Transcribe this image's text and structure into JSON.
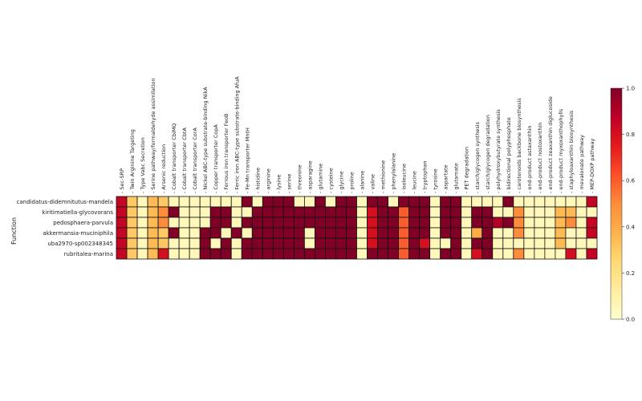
{
  "chart_data": {
    "type": "heatmap",
    "ylabel": "Function",
    "columns": [
      "Sec-SRP",
      "Twin Arginine Targeting",
      "Type Vabc Secretion",
      "Serine pathway/formaldehyde assimilation",
      "Arsenic reduction",
      "Cobalt transporter CbiMQ",
      "Cobalt transporter CbtA",
      "Cobalt transporter CorA",
      "Nickel ABC-type substrate-binding NikA",
      "Copper transporter CopA",
      "Ferrous iron transporter FeoB",
      "Ferric iron ABC-type substrate-binding AfuA",
      "Fe-Mn transporter MntH",
      "histidine",
      "arginine",
      "lysine",
      "serine",
      "threonine",
      "asparagine",
      "glutamine",
      "cysteine",
      "glycine",
      "proline",
      "alanine",
      "valine",
      "methionine",
      "phenylalanine",
      "isoleucine",
      "leucine",
      "tryptophan",
      "tyrosine",
      "aspartate",
      "glutamate",
      "PET degradation",
      "starch/glycogen synthesis",
      "starch/glycogen degradation",
      "polyhydroxybutyrate synthesis",
      "bidirectional polyphosphate",
      "carotenoids backbone biosynthesis",
      "end-product astaxanthin",
      "end-product nostoxanthin",
      "end-product zeaxanthin diglucoside",
      "end-product myxoxanthophylls",
      "staphyloaxanthin biosynthesis",
      "mevalonate pathway",
      "MEP-DOXP pathway"
    ],
    "rows": [
      "candidatus-didemnitutus-mandela",
      "kiritimatiella-glycovorans",
      "pedosphaera-parvula",
      "akkermansia-muciniphila",
      "uba2970-sp002348345",
      "rubritalea-marina"
    ],
    "values": [
      [
        0.85,
        0.3,
        0.05,
        0.35,
        0.3,
        0.05,
        0.05,
        0.05,
        0.05,
        0.05,
        0.05,
        0.05,
        1,
        0.05,
        1,
        1,
        1,
        0.05,
        0.05,
        1,
        0.05,
        1,
        1,
        0.05,
        1,
        1,
        0.05,
        1,
        1,
        1,
        0.05,
        1,
        1,
        0.05,
        0.05,
        0.05,
        0.05,
        1,
        0.05,
        0.05,
        0.05,
        0.05,
        0.05,
        0.05,
        0.05,
        0.85
      ],
      [
        0.85,
        0.3,
        0.05,
        0.35,
        0.5,
        1,
        0.05,
        0.05,
        0.05,
        1,
        1,
        0.05,
        0.05,
        1,
        1,
        1,
        1,
        1,
        1,
        1,
        1,
        1,
        1,
        0.05,
        0.8,
        1,
        1,
        0.6,
        1,
        1,
        0.05,
        1,
        1,
        0.05,
        1,
        1,
        0.05,
        0.05,
        0.5,
        0.05,
        0.05,
        0.05,
        0.35,
        0.35,
        0.05,
        0.05
      ],
      [
        0.85,
        0.3,
        0.05,
        0.35,
        0.5,
        0.05,
        0.05,
        0.05,
        0.05,
        1,
        1,
        0.05,
        1,
        1,
        1,
        1,
        1,
        1,
        1,
        1,
        1,
        1,
        1,
        0.05,
        0.8,
        1,
        1,
        0.6,
        1,
        1,
        0.05,
        1,
        1,
        0.05,
        1,
        1,
        0.9,
        1,
        0.5,
        0.05,
        0.05,
        0.05,
        0.35,
        0.5,
        0.05,
        0.85
      ],
      [
        0.85,
        0.3,
        0.05,
        0.35,
        0.3,
        1,
        0.05,
        0.05,
        1,
        1,
        0.05,
        1,
        0.05,
        1,
        1,
        1,
        1,
        1,
        0.05,
        1,
        1,
        1,
        1,
        0.05,
        0.8,
        1,
        1,
        0.6,
        1,
        1,
        0.05,
        1,
        1,
        0.05,
        0.4,
        1,
        0.05,
        0.05,
        0.5,
        0.05,
        0.05,
        0.05,
        0.35,
        0.05,
        0.05,
        0.85
      ],
      [
        0.85,
        0.3,
        0.05,
        0.35,
        0.3,
        0.05,
        0.05,
        0.05,
        1,
        0.05,
        1,
        0.05,
        1,
        1,
        1,
        1,
        1,
        1,
        0.05,
        1,
        1,
        1,
        1,
        0.05,
        0.8,
        1,
        1,
        0.6,
        1,
        0.8,
        0.05,
        0.05,
        1,
        0.05,
        1,
        1,
        0.05,
        0.05,
        0.05,
        0.05,
        0.05,
        0.05,
        0.35,
        0.05,
        0.05,
        0.05
      ],
      [
        0.85,
        0.3,
        0.05,
        0.35,
        0.8,
        0.05,
        0.05,
        0.05,
        1,
        1,
        1,
        0.05,
        1,
        1,
        1,
        1,
        1,
        1,
        1,
        1,
        1,
        1,
        1,
        0.05,
        1,
        1,
        1,
        0.6,
        1,
        1,
        0.05,
        1,
        1,
        0.05,
        0.8,
        1,
        0.05,
        0.05,
        0.5,
        0.05,
        0.05,
        0.05,
        0.05,
        0.8,
        0.05,
        0.85
      ]
    ],
    "colorbar": {
      "range": [
        0.0,
        1.0
      ],
      "ticks": [
        "0.0",
        "0.2",
        "0.4",
        "0.6",
        "0.8",
        "1.0"
      ],
      "colormap": [
        "#ffffcc",
        "#ffeda0",
        "#fed976",
        "#feb24c",
        "#fd8d3c",
        "#fc4e2a",
        "#e31a1c",
        "#bd0026",
        "#800026"
      ]
    },
    "grid": "black-cell-borders",
    "legend": "right"
  }
}
